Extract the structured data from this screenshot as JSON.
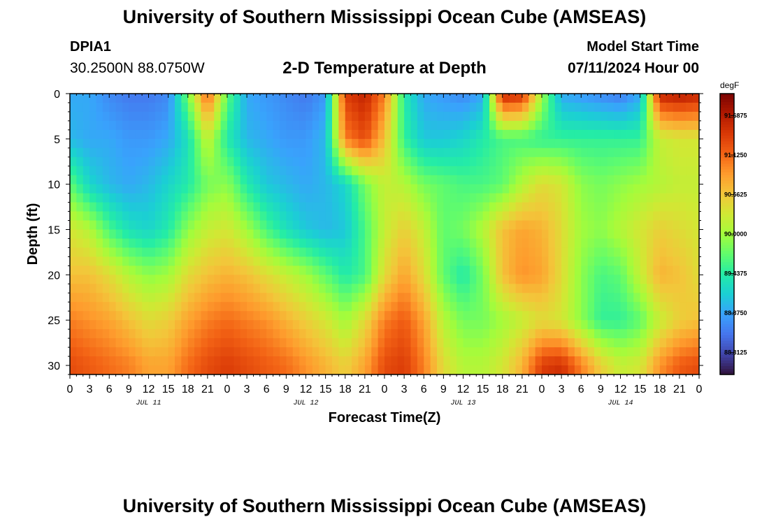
{
  "header": {
    "main_title": "University of Southern Mississippi Ocean Cube (AMSEAS)",
    "station": "DPIA1",
    "coords": "30.2500N  88.0750W",
    "chart_title": "2-D Temperature at Depth",
    "start_label": "Model Start Time",
    "start_value": "07/11/2024 Hour 00"
  },
  "footer": {
    "title": "University of Southern Mississippi Ocean Cube (AMSEAS)"
  },
  "chart_data": {
    "type": "heatmap",
    "title": "2-D Temperature at Depth",
    "xlabel": "Forecast Time(Z)",
    "ylabel": "Depth (ft)",
    "xlim": [
      0,
      96
    ],
    "ylim": [
      0,
      31
    ],
    "x_ticks": [
      {
        "hour": 0,
        "label": "0"
      },
      {
        "hour": 3,
        "label": "3"
      },
      {
        "hour": 6,
        "label": "6"
      },
      {
        "hour": 9,
        "label": "9"
      },
      {
        "hour": 12,
        "label": "12"
      },
      {
        "hour": 15,
        "label": "15"
      },
      {
        "hour": 18,
        "label": "18"
      },
      {
        "hour": 21,
        "label": "21"
      },
      {
        "hour": 24,
        "label": "0"
      },
      {
        "hour": 27,
        "label": "3"
      },
      {
        "hour": 30,
        "label": "6"
      },
      {
        "hour": 33,
        "label": "9"
      },
      {
        "hour": 36,
        "label": "12"
      },
      {
        "hour": 39,
        "label": "15"
      },
      {
        "hour": 42,
        "label": "18"
      },
      {
        "hour": 45,
        "label": "21"
      },
      {
        "hour": 48,
        "label": "0"
      },
      {
        "hour": 51,
        "label": "3"
      },
      {
        "hour": 54,
        "label": "6"
      },
      {
        "hour": 57,
        "label": "9"
      },
      {
        "hour": 60,
        "label": "12"
      },
      {
        "hour": 63,
        "label": "15"
      },
      {
        "hour": 66,
        "label": "18"
      },
      {
        "hour": 69,
        "label": "21"
      },
      {
        "hour": 72,
        "label": "0"
      },
      {
        "hour": 75,
        "label": "3"
      },
      {
        "hour": 78,
        "label": "6"
      },
      {
        "hour": 81,
        "label": "9"
      },
      {
        "hour": 84,
        "label": "12"
      },
      {
        "hour": 87,
        "label": "15"
      },
      {
        "hour": 90,
        "label": "18"
      },
      {
        "hour": 93,
        "label": "21"
      },
      {
        "hour": 96,
        "label": "0"
      }
    ],
    "y_ticks": [
      0,
      5,
      10,
      15,
      20,
      25,
      30
    ],
    "date_labels": [
      {
        "hour": 12,
        "label": "JUL 11"
      },
      {
        "hour": 36,
        "label": "JUL 12"
      },
      {
        "hour": 60,
        "label": "JUL 13"
      },
      {
        "hour": 84,
        "label": "JUL 14"
      }
    ],
    "colorbar": {
      "unit": "degF",
      "min": 88.0,
      "max": 92.0,
      "labels": [
        "91.6875",
        "91.1250",
        "90.5625",
        "90.0000",
        "89.4375",
        "88.8750",
        "88.3125"
      ],
      "label_values": [
        91.6875,
        91.125,
        90.5625,
        90.0,
        89.4375,
        88.875,
        88.3125
      ],
      "colors": [
        "#30123b",
        "#4145ab",
        "#4675ed",
        "#39a2fc",
        "#1bcfd4",
        "#24eca6",
        "#61fc6c",
        "#a4fc3b",
        "#d1e834",
        "#f3c63a",
        "#fe9b2d",
        "#f36315",
        "#d93806",
        "#b11901",
        "#7a0402"
      ]
    },
    "grid": false,
    "field_description": "Temperature (degF) by forecast hour (x) and depth in ft (y); sampled approximately at key times and depths",
    "times": [
      0,
      3,
      6,
      9,
      12,
      15,
      18,
      21,
      24,
      27,
      30,
      33,
      36,
      39,
      42,
      45,
      48,
      51,
      54,
      57,
      60,
      63,
      66,
      69,
      72,
      75,
      78,
      81,
      84,
      87,
      90,
      93,
      96
    ],
    "depths": [
      0,
      5,
      10,
      15,
      20,
      25,
      30
    ],
    "temperature": [
      [
        88.9,
        88.9,
        88.7,
        88.6,
        88.6,
        88.7,
        89.8,
        91.2,
        89.7,
        88.9,
        88.8,
        88.7,
        88.6,
        88.8,
        91.4,
        91.6,
        91.0,
        89.4,
        88.9,
        88.8,
        88.7,
        88.9,
        91.6,
        91.5,
        90.0,
        88.9,
        88.8,
        88.7,
        88.6,
        88.9,
        91.6,
        91.7,
        91.6
      ],
      [
        89.0,
        88.9,
        88.9,
        88.8,
        88.8,
        88.9,
        89.3,
        90.2,
        89.4,
        89.0,
        88.9,
        88.8,
        88.8,
        89.0,
        91.0,
        91.3,
        90.6,
        89.5,
        89.1,
        89.1,
        89.2,
        89.4,
        89.6,
        89.6,
        89.5,
        89.5,
        89.5,
        89.5,
        89.5,
        89.5,
        90.2,
        90.3,
        90.3
      ],
      [
        89.7,
        89.2,
        89.0,
        88.9,
        89.0,
        89.2,
        89.4,
        89.8,
        89.9,
        89.4,
        89.1,
        89.0,
        88.9,
        89.0,
        89.2,
        89.8,
        90.2,
        90.1,
        89.8,
        89.7,
        89.6,
        89.6,
        89.7,
        90.1,
        90.4,
        90.3,
        89.9,
        89.8,
        89.9,
        90.0,
        90.1,
        90.2,
        90.2
      ],
      [
        90.3,
        90.1,
        89.6,
        89.3,
        89.2,
        89.4,
        89.9,
        90.2,
        90.3,
        90.0,
        89.6,
        89.3,
        89.1,
        89.0,
        89.1,
        89.6,
        90.2,
        90.5,
        90.2,
        89.7,
        89.8,
        90.1,
        90.6,
        90.8,
        90.7,
        90.4,
        90.0,
        89.9,
        90.1,
        90.3,
        90.5,
        90.4,
        90.3
      ],
      [
        90.6,
        90.6,
        90.4,
        90.1,
        89.9,
        90.0,
        90.4,
        90.6,
        90.7,
        90.6,
        90.4,
        90.2,
        90.0,
        89.7,
        89.4,
        89.6,
        90.4,
        90.8,
        90.4,
        89.7,
        89.4,
        89.8,
        90.6,
        90.9,
        90.8,
        90.4,
        89.9,
        89.6,
        89.7,
        90.2,
        90.7,
        90.6,
        90.4
      ],
      [
        91.0,
        90.9,
        90.8,
        90.6,
        90.4,
        90.5,
        90.8,
        91.0,
        91.1,
        91.0,
        90.9,
        90.7,
        90.5,
        90.3,
        90.0,
        90.4,
        91.0,
        91.2,
        90.8,
        90.1,
        89.8,
        89.8,
        90.0,
        90.2,
        90.4,
        90.3,
        89.9,
        89.5,
        89.5,
        89.7,
        90.2,
        90.5,
        90.6
      ],
      [
        91.3,
        91.2,
        91.1,
        91.0,
        90.8,
        90.8,
        91.1,
        91.3,
        91.4,
        91.3,
        91.2,
        91.1,
        90.9,
        90.7,
        90.5,
        90.8,
        91.3,
        91.4,
        91.0,
        90.4,
        90.1,
        90.1,
        90.3,
        90.7,
        91.4,
        91.5,
        91.0,
        90.5,
        90.2,
        90.3,
        90.9,
        91.2,
        91.3
      ]
    ]
  }
}
